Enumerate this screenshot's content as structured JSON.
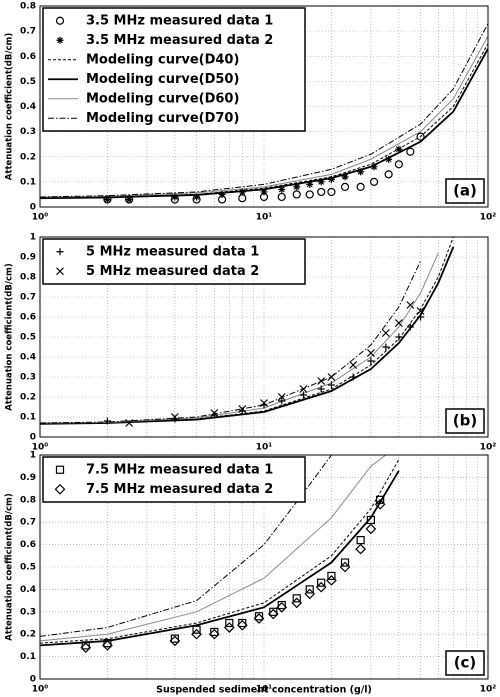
{
  "chart_data": [
    {
      "type": "line",
      "panel_label": "(a)",
      "ylabel": "Attenuation coefficient(dB/cm)",
      "log_x": true,
      "grid": true,
      "xlim": [
        1,
        100
      ],
      "xticks": [
        {
          "value": 1,
          "label": "10⁰"
        },
        {
          "value": 10,
          "label": "10¹"
        },
        {
          "value": 100,
          "label": "10²"
        }
      ],
      "xminorticks": [
        2,
        3,
        4,
        5,
        6,
        7,
        8,
        9,
        20,
        30,
        40,
        50,
        60,
        70,
        80,
        90
      ],
      "ylim": [
        0,
        0.8
      ],
      "yticks": [
        0,
        0.1,
        0.2,
        0.3,
        0.4,
        0.5,
        0.6,
        0.7,
        0.8
      ],
      "series": [
        {
          "name": "3.5 MHz measured data 1",
          "marker": "circle",
          "color": "#000000",
          "x": [
            2,
            2.5,
            4,
            5,
            6.5,
            8,
            10,
            12,
            14,
            16,
            18,
            20,
            23,
            27,
            31,
            36,
            40,
            45,
            50
          ],
          "values": [
            0.03,
            0.03,
            0.03,
            0.03,
            0.03,
            0.035,
            0.04,
            0.04,
            0.05,
            0.05,
            0.06,
            0.06,
            0.08,
            0.08,
            0.1,
            0.13,
            0.17,
            0.22,
            0.28
          ]
        },
        {
          "name": "3.5 MHz measured data 2",
          "marker": "star",
          "color": "#000000",
          "x": [
            2,
            2.5,
            4,
            5,
            6.5,
            8,
            10,
            12,
            14,
            16,
            18,
            20,
            23,
            27,
            31,
            36,
            40
          ],
          "values": [
            0.03,
            0.03,
            0.04,
            0.04,
            0.05,
            0.06,
            0.06,
            0.07,
            0.08,
            0.09,
            0.1,
            0.11,
            0.12,
            0.14,
            0.16,
            0.19,
            0.23
          ]
        },
        {
          "name": "Modeling curve(D40)",
          "line": "dash",
          "color": "#000000",
          "x": [
            1,
            2,
            5,
            10,
            20,
            30,
            50,
            70,
            100
          ],
          "values": [
            0.035,
            0.04,
            0.05,
            0.075,
            0.12,
            0.17,
            0.28,
            0.4,
            0.65
          ]
        },
        {
          "name": "Modeling curve(D50)",
          "line": "solid",
          "color": "#000000",
          "x": [
            1,
            2,
            5,
            10,
            20,
            30,
            50,
            70,
            100
          ],
          "values": [
            0.035,
            0.038,
            0.048,
            0.07,
            0.115,
            0.16,
            0.26,
            0.38,
            0.63
          ]
        },
        {
          "name": "Modeling curve(D60)",
          "line": "thin",
          "color": "#888888",
          "x": [
            1,
            2,
            5,
            10,
            20,
            30,
            50,
            70,
            100
          ],
          "values": [
            0.04,
            0.043,
            0.056,
            0.08,
            0.13,
            0.19,
            0.3,
            0.43,
            0.68
          ]
        },
        {
          "name": "Modeling curve(D70)",
          "line": "dashdot",
          "color": "#000000",
          "x": [
            1,
            2,
            5,
            10,
            20,
            30,
            50,
            70,
            100
          ],
          "values": [
            0.04,
            0.045,
            0.06,
            0.09,
            0.15,
            0.21,
            0.33,
            0.47,
            0.73
          ]
        }
      ]
    },
    {
      "type": "line",
      "panel_label": "(b)",
      "ylabel": "Attenuation coefficient(dB/cm)",
      "log_x": true,
      "grid": true,
      "xlim": [
        1,
        100
      ],
      "xticks": [
        {
          "value": 1,
          "label": "10⁰"
        },
        {
          "value": 10,
          "label": "10¹"
        },
        {
          "value": 100,
          "label": "10²"
        }
      ],
      "xminorticks": [
        2,
        3,
        4,
        5,
        6,
        7,
        8,
        9,
        20,
        30,
        40,
        50,
        60,
        70,
        80,
        90
      ],
      "ylim": [
        0,
        1
      ],
      "yticks": [
        0,
        0.1,
        0.2,
        0.3,
        0.4,
        0.5,
        0.6,
        0.7,
        0.8,
        0.9,
        1
      ],
      "series": [
        {
          "name": "5 MHz measured data 1",
          "marker": "plus",
          "color": "#000000",
          "x": [
            2,
            4,
            6,
            8,
            10,
            12,
            15,
            18,
            20,
            25,
            30,
            35,
            40,
            45,
            50
          ],
          "values": [
            0.08,
            0.09,
            0.11,
            0.13,
            0.16,
            0.18,
            0.21,
            0.24,
            0.26,
            0.3,
            0.38,
            0.45,
            0.5,
            0.55,
            0.6
          ]
        },
        {
          "name": "5 MHz measured data 2",
          "marker": "x",
          "color": "#000000",
          "x": [
            2.5,
            4,
            6,
            8,
            10,
            12,
            15,
            18,
            20,
            25,
            30,
            35,
            40,
            45,
            50
          ],
          "values": [
            0.07,
            0.1,
            0.12,
            0.14,
            0.17,
            0.2,
            0.24,
            0.28,
            0.3,
            0.36,
            0.42,
            0.52,
            0.57,
            0.66,
            0.63
          ]
        },
        {
          "line": "dash",
          "color": "#000000",
          "x": [
            1,
            2,
            5,
            10,
            20,
            30,
            40,
            50,
            60,
            70
          ],
          "values": [
            0.068,
            0.072,
            0.09,
            0.13,
            0.24,
            0.36,
            0.49,
            0.64,
            0.8,
            1.0
          ]
        },
        {
          "line": "solid",
          "color": "#000000",
          "x": [
            1,
            2,
            5,
            10,
            20,
            30,
            40,
            50,
            60,
            70
          ],
          "values": [
            0.066,
            0.07,
            0.087,
            0.125,
            0.23,
            0.34,
            0.47,
            0.61,
            0.77,
            0.95
          ]
        },
        {
          "line": "thin",
          "color": "#888888",
          "x": [
            1,
            2,
            5,
            10,
            20,
            30,
            40,
            50,
            60
          ],
          "values": [
            0.07,
            0.073,
            0.095,
            0.145,
            0.27,
            0.4,
            0.55,
            0.72,
            0.92
          ]
        },
        {
          "line": "dashdot",
          "color": "#000000",
          "x": [
            1,
            2,
            5,
            10,
            20,
            30,
            40,
            50
          ],
          "values": [
            0.07,
            0.075,
            0.1,
            0.16,
            0.3,
            0.46,
            0.65,
            0.88
          ]
        }
      ]
    },
    {
      "type": "line",
      "panel_label": "(c)",
      "ylabel": "Attenuation coefficient(dB/cm)",
      "xlabel": "Suspended sediment concentration (g/l)",
      "log_x": true,
      "grid": true,
      "xlim": [
        1,
        100
      ],
      "xticks": [
        {
          "value": 1,
          "label": "10⁰"
        },
        {
          "value": 10,
          "label": "10¹"
        },
        {
          "value": 100,
          "label": "10²"
        }
      ],
      "xminorticks": [
        2,
        3,
        4,
        5,
        6,
        7,
        8,
        9,
        20,
        30,
        40,
        50,
        60,
        70,
        80,
        90
      ],
      "ylim": [
        0,
        1
      ],
      "yticks": [
        0,
        0.1,
        0.2,
        0.3,
        0.4,
        0.5,
        0.6,
        0.7,
        0.8,
        0.9,
        1
      ],
      "series": [
        {
          "name": "7.5 MHz measured data 1",
          "marker": "square",
          "color": "#000000",
          "x": [
            1.6,
            2,
            4,
            5,
            6,
            7,
            8,
            9.5,
            11,
            12,
            14,
            16,
            18,
            20,
            23,
            27,
            30,
            33
          ],
          "values": [
            0.15,
            0.16,
            0.18,
            0.22,
            0.21,
            0.25,
            0.25,
            0.28,
            0.3,
            0.33,
            0.36,
            0.4,
            0.43,
            0.46,
            0.52,
            0.62,
            0.71,
            0.8
          ]
        },
        {
          "name": "7.5 MHz measured data 2",
          "marker": "diamond",
          "color": "#000000",
          "x": [
            1.6,
            2,
            4,
            5,
            6,
            7,
            8,
            9.5,
            11,
            12,
            14,
            16,
            18,
            20,
            23,
            27,
            30,
            33
          ],
          "values": [
            0.14,
            0.15,
            0.17,
            0.2,
            0.2,
            0.23,
            0.24,
            0.27,
            0.29,
            0.32,
            0.34,
            0.38,
            0.41,
            0.44,
            0.5,
            0.58,
            0.67,
            0.78
          ]
        },
        {
          "line": "dash",
          "color": "#000000",
          "x": [
            1,
            2,
            5,
            10,
            20,
            30,
            40
          ],
          "values": [
            0.16,
            0.18,
            0.25,
            0.34,
            0.55,
            0.76,
            0.98
          ]
        },
        {
          "line": "solid",
          "color": "#000000",
          "x": [
            1,
            2,
            5,
            10,
            20,
            30,
            40
          ],
          "values": [
            0.15,
            0.17,
            0.24,
            0.32,
            0.52,
            0.72,
            0.93
          ]
        },
        {
          "line": "thin",
          "color": "#888888",
          "x": [
            1,
            2,
            5,
            10,
            20,
            30,
            35
          ],
          "values": [
            0.17,
            0.2,
            0.3,
            0.45,
            0.72,
            0.95,
            1.0
          ]
        },
        {
          "line": "dashdot",
          "color": "#000000",
          "x": [
            1,
            2,
            5,
            10,
            15,
            20
          ],
          "values": [
            0.19,
            0.23,
            0.35,
            0.6,
            0.83,
            1.0
          ]
        }
      ]
    }
  ]
}
